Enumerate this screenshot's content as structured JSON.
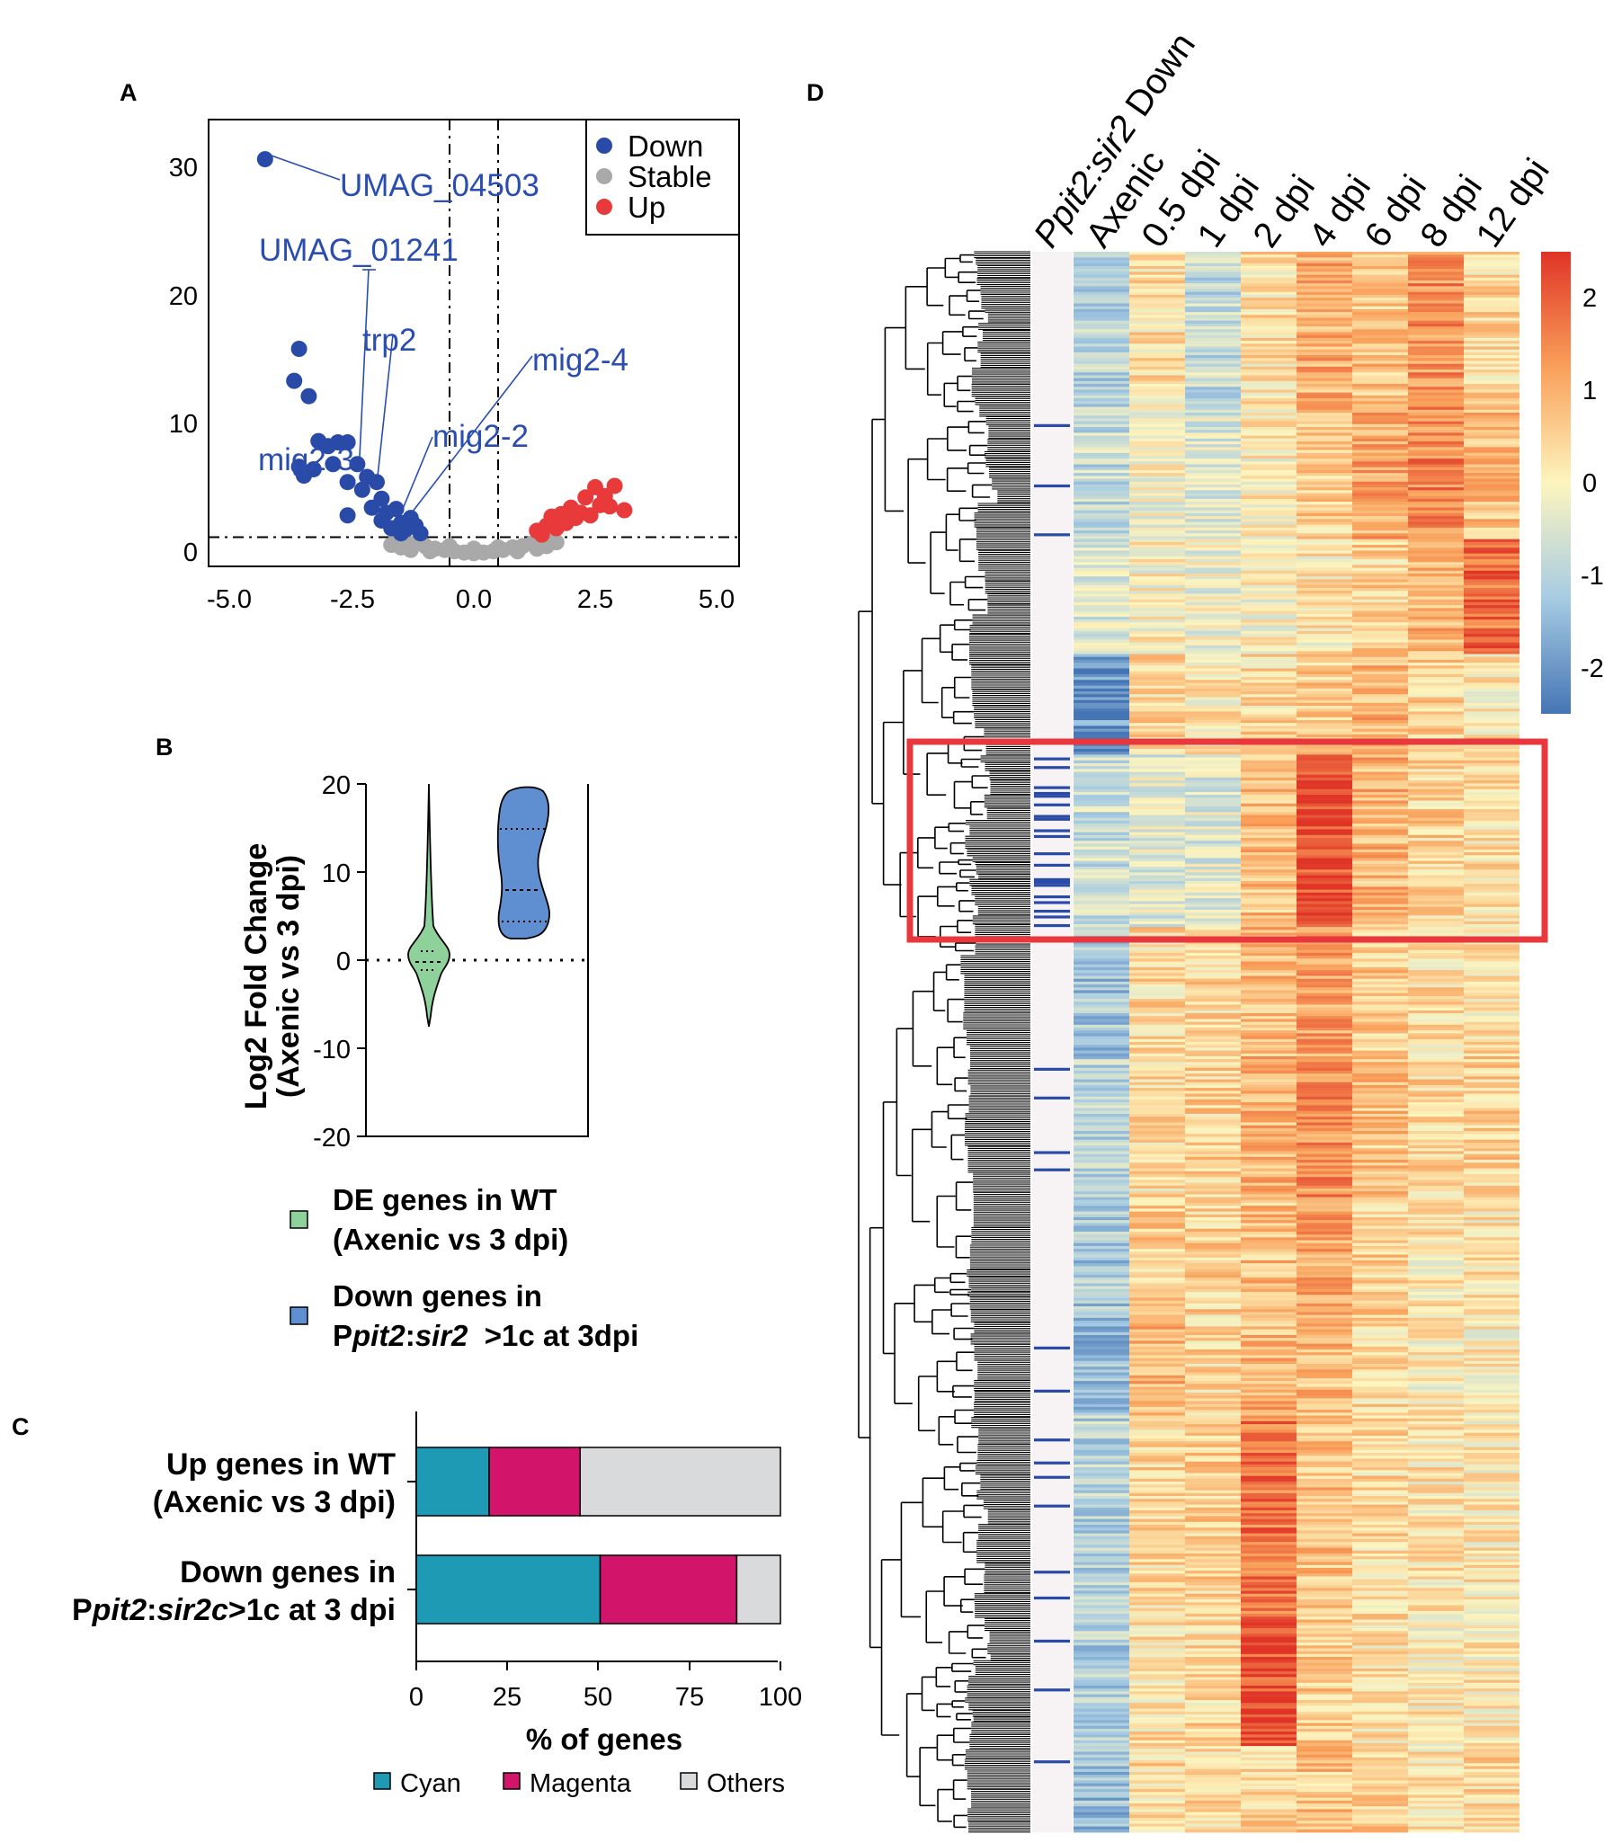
{
  "panels": {
    "a": "A",
    "b": "B",
    "c": "C",
    "d": "D"
  },
  "chart_data": [
    {
      "panel": "A",
      "type": "scatter",
      "title": "",
      "xlabel": "",
      "ylabel": "",
      "xlim": [
        -5.0,
        5.0
      ],
      "ylim": [
        0,
        32
      ],
      "xticks": [
        "-5.0",
        "-2.5",
        "0.0",
        "2.5",
        "5.0"
      ],
      "yticks": [
        "0",
        "10",
        "20",
        "30"
      ],
      "threshold_lines": {
        "x": [
          -0.5,
          0.5
        ],
        "y": 1.3
      },
      "legend": {
        "position": "top-right",
        "entries": [
          {
            "name": "Down",
            "color": "#2a4aa8"
          },
          {
            "name": "Stable",
            "color": "#a9a9a9"
          },
          {
            "name": "Up",
            "color": "#e83a3a"
          }
        ]
      },
      "series": [
        {
          "name": "Down",
          "color": "#2a4aa8",
          "points": [
            [
              -4.3,
              30.8
            ],
            [
              -3.6,
              16.0
            ],
            [
              -3.7,
              13.5
            ],
            [
              -3.4,
              12.3
            ],
            [
              -3.6,
              6.8
            ],
            [
              -3.5,
              6.1
            ],
            [
              -3.3,
              6.6
            ],
            [
              -3.2,
              8.8
            ],
            [
              -3.0,
              8.4
            ],
            [
              -2.8,
              8.7
            ],
            [
              -2.6,
              8.7
            ],
            [
              -2.9,
              7.0
            ],
            [
              -2.4,
              7.0
            ],
            [
              -2.2,
              6.0
            ],
            [
              -2.6,
              5.6
            ],
            [
              -2.3,
              5.0
            ],
            [
              -2.0,
              5.6
            ],
            [
              -1.9,
              4.3
            ],
            [
              -2.1,
              3.6
            ],
            [
              -1.8,
              3.2
            ],
            [
              -1.6,
              3.5
            ],
            [
              -1.5,
              2.4
            ],
            [
              -1.3,
              2.8
            ],
            [
              -1.4,
              1.9
            ],
            [
              -1.2,
              2.2
            ],
            [
              -1.1,
              1.6
            ],
            [
              -2.6,
              3.0
            ],
            [
              -1.7,
              2.0
            ],
            [
              -1.5,
              1.6
            ],
            [
              -1.9,
              2.6
            ]
          ]
        },
        {
          "name": "Stable",
          "color": "#a9a9a9",
          "points": [
            [
              -1.6,
              1.1
            ],
            [
              -1.4,
              0.9
            ],
            [
              -1.2,
              0.8
            ],
            [
              -1.0,
              0.6
            ],
            [
              -0.8,
              0.4
            ],
            [
              -0.6,
              0.3
            ],
            [
              -0.4,
              0.2
            ],
            [
              -0.2,
              0.1
            ],
            [
              0.0,
              0.05
            ],
            [
              0.2,
              0.1
            ],
            [
              0.4,
              0.2
            ],
            [
              0.6,
              0.3
            ],
            [
              0.8,
              0.5
            ],
            [
              1.0,
              0.6
            ],
            [
              1.2,
              0.8
            ],
            [
              1.4,
              1.0
            ],
            [
              1.6,
              1.2
            ],
            [
              -1.3,
              0.3
            ],
            [
              -0.9,
              0.2
            ],
            [
              0.9,
              0.2
            ],
            [
              1.3,
              0.4
            ],
            [
              -0.5,
              0.6
            ],
            [
              0.5,
              0.5
            ],
            [
              -1.5,
              0.5
            ],
            [
              1.5,
              0.6
            ],
            [
              1.7,
              0.9
            ],
            [
              -1.7,
              0.7
            ],
            [
              0.0,
              0.4
            ]
          ]
        },
        {
          "name": "Up",
          "color": "#e83a3a",
          "points": [
            [
              1.3,
              1.8
            ],
            [
              1.5,
              2.2
            ],
            [
              1.6,
              2.9
            ],
            [
              1.8,
              3.1
            ],
            [
              1.9,
              2.4
            ],
            [
              2.0,
              3.6
            ],
            [
              2.1,
              2.8
            ],
            [
              2.3,
              4.4
            ],
            [
              2.4,
              3.0
            ],
            [
              2.5,
              5.2
            ],
            [
              2.6,
              3.8
            ],
            [
              2.7,
              4.5
            ],
            [
              2.8,
              3.7
            ],
            [
              2.9,
              5.3
            ],
            [
              3.1,
              3.4
            ],
            [
              1.4,
              1.5
            ],
            [
              1.7,
              2.0
            ],
            [
              2.2,
              3.2
            ]
          ]
        }
      ],
      "annotations": [
        "UMAG_04503",
        "UMAG_01241",
        "trp2",
        "mig2-4",
        "mig2-2",
        "mig2-3"
      ]
    },
    {
      "panel": "B",
      "type": "violin",
      "ylabel_line1": "Log2 Fold Change",
      "ylabel_line2": "(Axenic vs 3 dpi)",
      "ylim": [
        -20,
        20
      ],
      "yticks": [
        "20",
        "10",
        "0",
        "-10",
        "-20"
      ],
      "series": [
        {
          "name": "DE genes in WT (Axenic vs 3 dpi)",
          "color": "#8fd19a",
          "range": [
            -7.5,
            20
          ],
          "median": 0.2,
          "q1": -1.5,
          "q3": 1.8
        },
        {
          "name": "Down genes in Ppit2:sir2 >1c at 3dpi",
          "color": "#5f8fd0",
          "range": [
            2.0,
            19.3
          ],
          "median": 8.0,
          "q1": 4.5,
          "q3": 15.5
        }
      ],
      "legend": [
        {
          "line1": "DE genes in WT",
          "line2": "(Axenic vs 3 dpi)",
          "color": "#8fd19a"
        },
        {
          "line1": "Down genes in",
          "line2_prefix": "P",
          "line2_italic1": "pit2",
          "line2_colon": ":",
          "line2_italic2": "sir2",
          "line2_suffix": "  >1c at 3dpi",
          "color": "#5f8fd0"
        }
      ]
    },
    {
      "panel": "C",
      "type": "bar",
      "orientation": "horizontal-stacked",
      "xlabel": "% of genes",
      "xlim": [
        0,
        100
      ],
      "xticks": [
        "0",
        "25",
        "50",
        "75",
        "100"
      ],
      "categories": [
        {
          "line1": "Up genes in WT",
          "line2": "(Axenic vs 3 dpi)"
        },
        {
          "line1": "Down genes in",
          "line2_prefix": "P",
          "line2_italic1": "pit2",
          "line2_colon": ":",
          "line2_italic2": "sir2c",
          "line2_suffix": ">1c at 3 dpi"
        }
      ],
      "series": [
        {
          "name": "Cyan",
          "color": "#1f9ab5",
          "values": [
            20,
            50.5
          ]
        },
        {
          "name": "Magenta",
          "color": "#d3146b",
          "values": [
            25,
            37.5
          ]
        },
        {
          "name": "Others",
          "color": "#d8dadb",
          "values": [
            55,
            12
          ]
        }
      ],
      "legend": {
        "position": "bottom"
      }
    },
    {
      "panel": "D",
      "type": "heatmap",
      "columns": [
        "Axenic",
        "0.5 dpi",
        "1 dpi",
        "2 dpi",
        "4 dpi",
        "6 dpi",
        "8 dpi",
        "12 dpi"
      ],
      "annotation_column": {
        "prefix": "P",
        "italic1": "pit2",
        "colon": ":",
        "italic2": "sir2",
        "suffix": " Down"
      },
      "colorbar": {
        "ticks": [
          "2",
          "1",
          "0",
          "-1",
          "-2"
        ],
        "range": [
          -2.5,
          2.5
        ],
        "low": "#4575b4",
        "mid": "#fdf5bf",
        "high": "#e03427"
      },
      "row_clusters": [
        {
          "rows": 55,
          "means": [
            -1.0,
            0.3,
            -0.8,
            0.3,
            1.0,
            0.7,
            1.4,
            0.4
          ]
        },
        {
          "rows": 45,
          "means": [
            -0.8,
            -0.1,
            -0.4,
            0.1,
            0.6,
            1.1,
            1.5,
            0.8
          ]
        },
        {
          "rows": 40,
          "means": [
            -0.4,
            0.0,
            -0.2,
            0.0,
            0.2,
            0.5,
            0.9,
            1.8
          ]
        },
        {
          "rows": 35,
          "means": [
            -2.0,
            0.4,
            0.2,
            0.4,
            0.6,
            0.9,
            0.5,
            0.2
          ]
        },
        {
          "rows": 60,
          "means": [
            -0.7,
            -0.4,
            -0.4,
            0.8,
            2.2,
            0.9,
            0.5,
            0.3
          ]
        },
        {
          "rows": 45,
          "means": [
            -1.3,
            0.4,
            0.4,
            0.8,
            1.2,
            0.6,
            0.3,
            0.3
          ]
        },
        {
          "rows": 50,
          "means": [
            -1.0,
            0.3,
            0.5,
            0.9,
            1.4,
            0.7,
            0.4,
            0.5
          ]
        },
        {
          "rows": 40,
          "means": [
            -1.2,
            0.5,
            0.5,
            0.8,
            1.1,
            0.5,
            0.2,
            0.2
          ]
        },
        {
          "rows": 35,
          "means": [
            -1.5,
            0.9,
            0.4,
            0.9,
            0.8,
            0.4,
            0.1,
            0.1
          ]
        },
        {
          "rows": 70,
          "means": [
            -1.0,
            0.4,
            0.5,
            1.7,
            0.7,
            0.4,
            0.2,
            0.2
          ]
        },
        {
          "rows": 45,
          "means": [
            -1.1,
            0.3,
            0.4,
            2.2,
            0.6,
            0.3,
            0.1,
            0.2
          ]
        },
        {
          "rows": 30,
          "means": [
            -1.4,
            0.4,
            0.4,
            0.5,
            0.7,
            0.5,
            0.3,
            0.4
          ]
        }
      ],
      "highlight_box": {
        "cluster": 5,
        "color": "#e8383d",
        "label": ""
      },
      "down_gene_marks_per_cluster": [
        0,
        3,
        0,
        0,
        22,
        0,
        4,
        0,
        2,
        6,
        2,
        1
      ]
    }
  ]
}
